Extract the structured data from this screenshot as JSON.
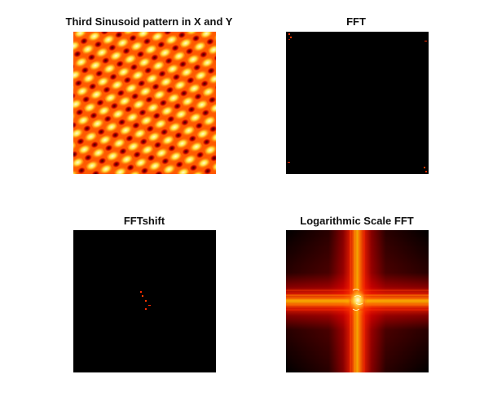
{
  "figure": {
    "panels": [
      {
        "title": "Third Sinusoid pattern in X and Y",
        "content": "sinusoid-pattern"
      },
      {
        "title": "FFT",
        "content": "fft-raw"
      },
      {
        "title": "FFTshift",
        "content": "fft-shifted"
      },
      {
        "title": "Logarithmic Scale FFT",
        "content": "fft-log"
      }
    ]
  },
  "colors": {
    "background": "#000000",
    "hot_red": "#ff2a00",
    "hot_orange": "#ff9a00",
    "hot_yellow": "#ffff60",
    "hot_white": "#fffff0"
  }
}
